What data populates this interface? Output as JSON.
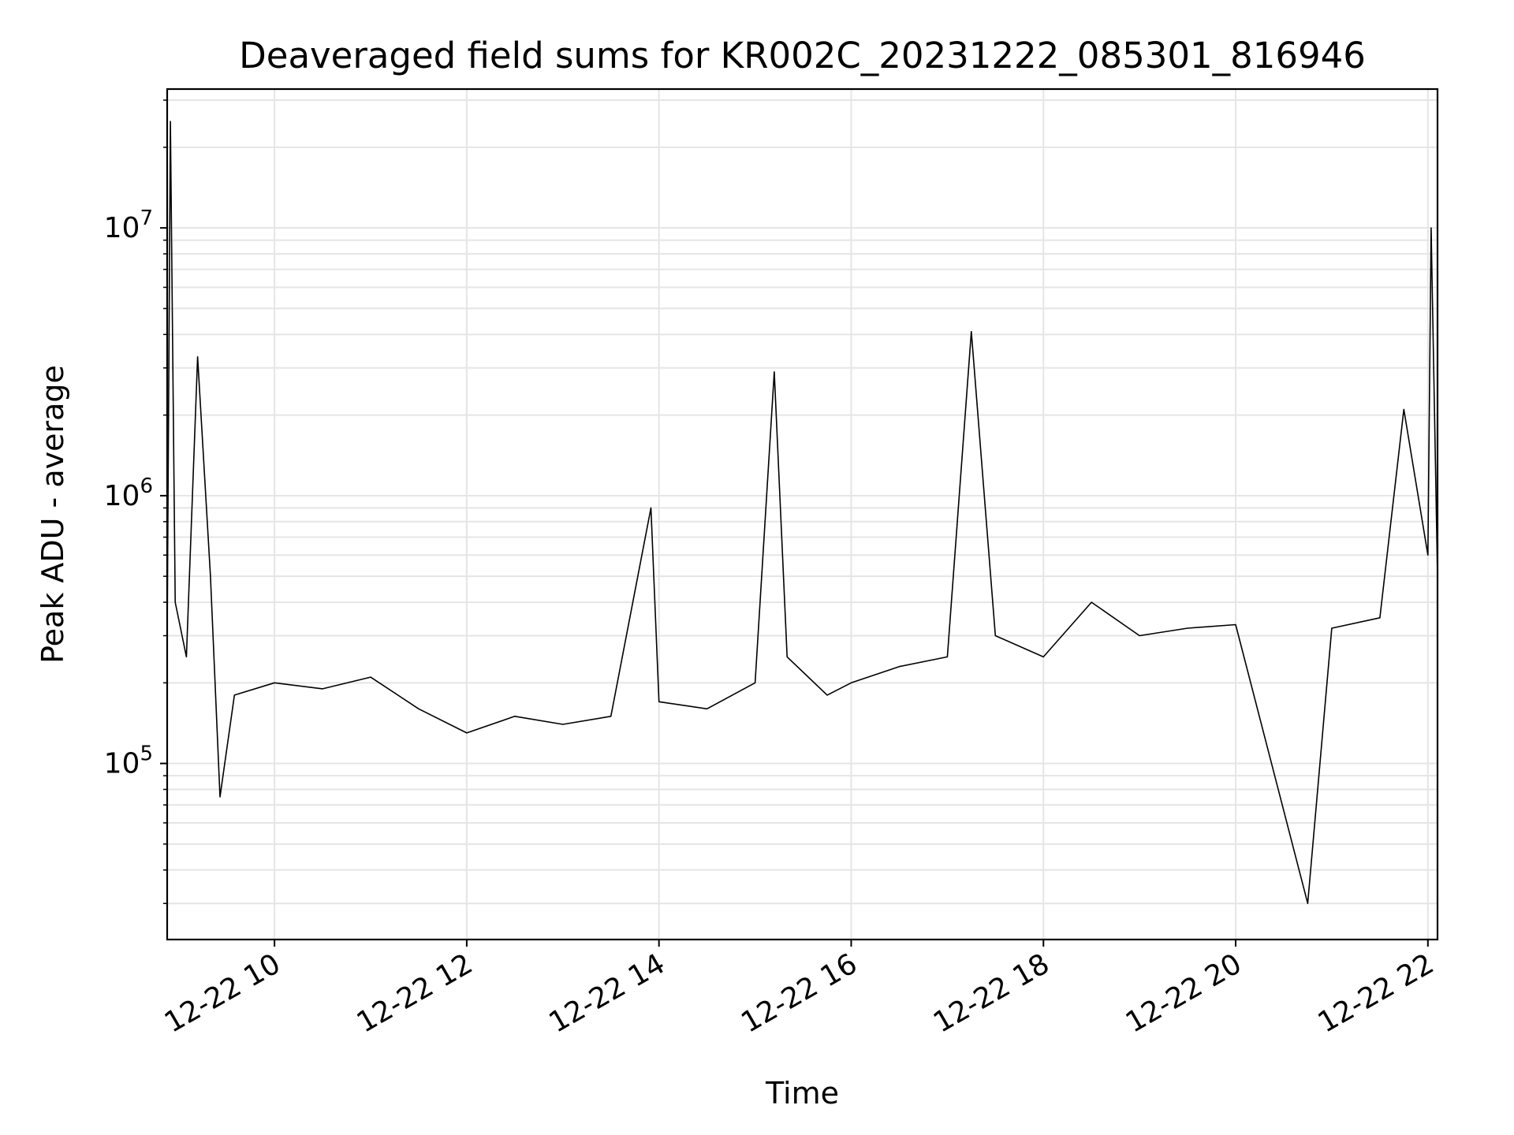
{
  "chart_data": {
    "type": "line",
    "title": "Deaveraged field sums for KR002C_20231222_085301_816946",
    "xlabel": "Time",
    "ylabel": "Peak ADU - average",
    "x_scale": "time",
    "y_scale": "log",
    "xlim": [
      "2023-12-22T08:53",
      "2023-12-22T22:06"
    ],
    "ylim": [
      22000,
      33000000
    ],
    "x_ticks": [
      {
        "time": "2023-12-22T10:00",
        "label": "12-22 10"
      },
      {
        "time": "2023-12-22T12:00",
        "label": "12-22 12"
      },
      {
        "time": "2023-12-22T14:00",
        "label": "12-22 14"
      },
      {
        "time": "2023-12-22T16:00",
        "label": "12-22 16"
      },
      {
        "time": "2023-12-22T18:00",
        "label": "12-22 18"
      },
      {
        "time": "2023-12-22T20:00",
        "label": "12-22 20"
      },
      {
        "time": "2023-12-22T22:00",
        "label": "12-22 22"
      }
    ],
    "y_ticks": [
      {
        "value": 100000,
        "base": "10",
        "exp": "5"
      },
      {
        "value": 1000000,
        "base": "10",
        "exp": "6"
      },
      {
        "value": 10000000,
        "base": "10",
        "exp": "7"
      }
    ],
    "grid": true,
    "grid_minor_y": true,
    "line_color": "#000000",
    "grid_color": "#e5e5e5",
    "series": [
      {
        "values": [
          {
            "time": "2023-12-22T08:53",
            "value": 300000
          },
          {
            "time": "2023-12-22T08:55",
            "value": 25000000
          },
          {
            "time": "2023-12-22T08:58",
            "value": 400000
          },
          {
            "time": "2023-12-22T09:05",
            "value": 250000
          },
          {
            "time": "2023-12-22T09:12",
            "value": 3300000
          },
          {
            "time": "2023-12-22T09:20",
            "value": 500000
          },
          {
            "time": "2023-12-22T09:26",
            "value": 75000
          },
          {
            "time": "2023-12-22T09:35",
            "value": 180000
          },
          {
            "time": "2023-12-22T10:00",
            "value": 200000
          },
          {
            "time": "2023-12-22T10:30",
            "value": 190000
          },
          {
            "time": "2023-12-22T11:00",
            "value": 210000
          },
          {
            "time": "2023-12-22T11:30",
            "value": 160000
          },
          {
            "time": "2023-12-22T12:00",
            "value": 130000
          },
          {
            "time": "2023-12-22T12:30",
            "value": 150000
          },
          {
            "time": "2023-12-22T13:00",
            "value": 140000
          },
          {
            "time": "2023-12-22T13:30",
            "value": 150000
          },
          {
            "time": "2023-12-22T13:55",
            "value": 900000
          },
          {
            "time": "2023-12-22T14:00",
            "value": 170000
          },
          {
            "time": "2023-12-22T14:30",
            "value": 160000
          },
          {
            "time": "2023-12-22T15:00",
            "value": 200000
          },
          {
            "time": "2023-12-22T15:12",
            "value": 2900000
          },
          {
            "time": "2023-12-22T15:20",
            "value": 250000
          },
          {
            "time": "2023-12-22T15:45",
            "value": 180000
          },
          {
            "time": "2023-12-22T16:00",
            "value": 200000
          },
          {
            "time": "2023-12-22T16:30",
            "value": 230000
          },
          {
            "time": "2023-12-22T17:00",
            "value": 250000
          },
          {
            "time": "2023-12-22T17:15",
            "value": 4100000
          },
          {
            "time": "2023-12-22T17:30",
            "value": 300000
          },
          {
            "time": "2023-12-22T18:00",
            "value": 250000
          },
          {
            "time": "2023-12-22T18:30",
            "value": 400000
          },
          {
            "time": "2023-12-22T19:00",
            "value": 300000
          },
          {
            "time": "2023-12-22T19:30",
            "value": 320000
          },
          {
            "time": "2023-12-22T20:00",
            "value": 330000
          },
          {
            "time": "2023-12-22T20:45",
            "value": 30000
          },
          {
            "time": "2023-12-22T21:00",
            "value": 320000
          },
          {
            "time": "2023-12-22T21:30",
            "value": 350000
          },
          {
            "time": "2023-12-22T21:45",
            "value": 2100000
          },
          {
            "time": "2023-12-22T22:00",
            "value": 600000
          },
          {
            "time": "2023-12-22T22:02",
            "value": 10000000
          },
          {
            "time": "2023-12-22T22:06",
            "value": 500000
          }
        ]
      }
    ]
  }
}
